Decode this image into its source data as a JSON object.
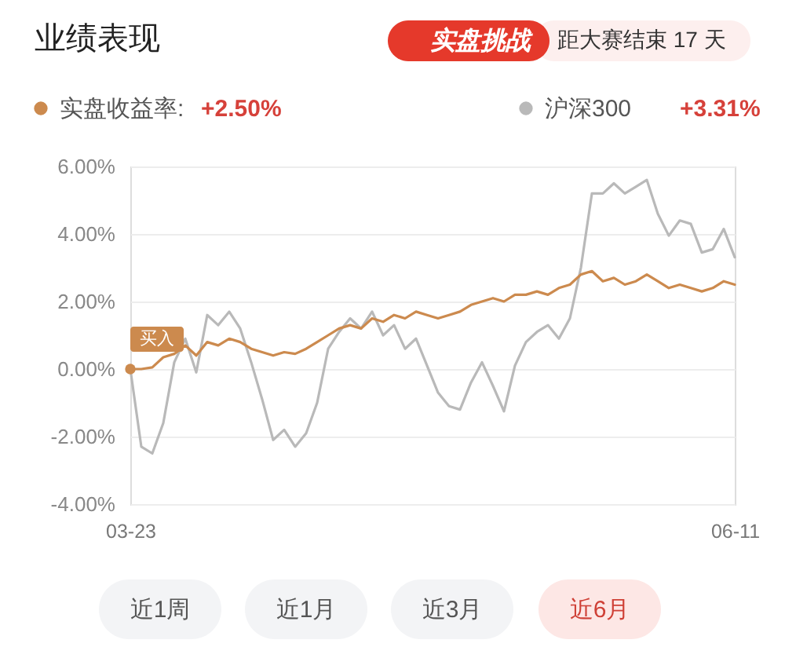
{
  "chart_data": {
    "type": "line",
    "title": "业绩表现",
    "categories": [
      "03-23",
      null,
      null,
      null,
      null,
      null,
      null,
      null,
      null,
      null,
      null,
      null,
      null,
      null,
      null,
      null,
      null,
      null,
      null,
      null,
      null,
      null,
      null,
      null,
      null,
      null,
      null,
      null,
      null,
      null,
      null,
      null,
      null,
      null,
      null,
      null,
      null,
      null,
      null,
      null,
      null,
      null,
      null,
      null,
      null,
      null,
      null,
      null,
      null,
      null,
      null,
      null,
      null,
      null,
      null,
      "06-11"
    ],
    "series": [
      {
        "name": "实盘收益率:",
        "color": "#cc8a4e",
        "values": [
          0.0,
          0.0,
          0.05,
          0.35,
          0.45,
          0.7,
          0.4,
          0.8,
          0.7,
          0.9,
          0.8,
          0.6,
          0.5,
          0.4,
          0.5,
          0.45,
          0.6,
          0.8,
          1.0,
          1.2,
          1.3,
          1.2,
          1.5,
          1.4,
          1.6,
          1.5,
          1.7,
          1.6,
          1.5,
          1.6,
          1.7,
          1.9,
          2.0,
          2.1,
          2.0,
          2.2,
          2.2,
          2.3,
          2.2,
          2.4,
          2.5,
          2.8,
          2.9,
          2.6,
          2.7,
          2.5,
          2.6,
          2.8,
          2.6,
          2.4,
          2.5,
          2.4,
          2.3,
          2.4,
          2.6,
          2.5
        ]
      },
      {
        "name": "沪深300",
        "color": "#b9b9b9",
        "values": [
          0.0,
          -2.3,
          -2.5,
          -1.6,
          0.2,
          0.9,
          -0.1,
          1.6,
          1.3,
          1.7,
          1.2,
          0.2,
          -0.9,
          -2.1,
          -1.8,
          -2.3,
          -1.9,
          -1.0,
          0.6,
          1.1,
          1.5,
          1.2,
          1.7,
          1.0,
          1.3,
          0.6,
          0.9,
          0.1,
          -0.7,
          -1.1,
          -1.2,
          -0.4,
          0.2,
          -0.5,
          -1.25,
          0.1,
          0.8,
          1.1,
          1.3,
          0.9,
          1.5,
          3.0,
          5.2,
          5.2,
          5.5,
          5.2,
          5.4,
          5.6,
          4.6,
          3.95,
          4.4,
          4.3,
          3.45,
          3.55,
          4.15,
          3.31
        ]
      }
    ],
    "ylim": [
      -4,
      6
    ],
    "yticks": [
      {
        "value": 6,
        "label": "6.00%"
      },
      {
        "value": 4,
        "label": "4.00%"
      },
      {
        "value": 2,
        "label": "2.00%"
      },
      {
        "value": 0,
        "label": "0.00%"
      },
      {
        "value": -2,
        "label": "-2.00%"
      },
      {
        "value": -4,
        "label": "-4.00%"
      }
    ],
    "grid": "y",
    "legend": "top",
    "annotations": [
      "实盘挑战",
      "距大赛结束 17 天",
      "+2.50%",
      "+3.31%",
      "近1周",
      "近1月",
      "近3月",
      "近6月",
      {
        "text": "买入",
        "x": "03-23",
        "y": 0
      }
    ]
  }
}
